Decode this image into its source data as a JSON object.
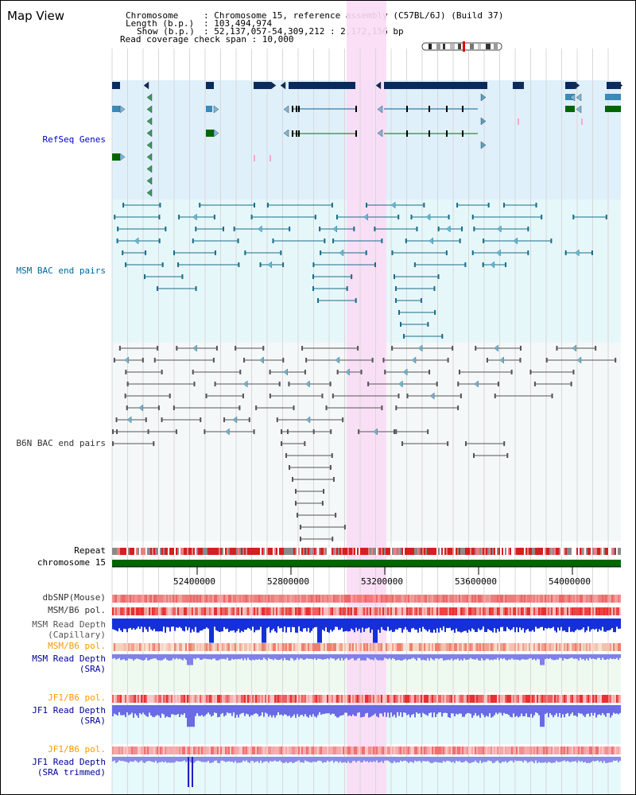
{
  "header": {
    "title": "Map View",
    "chromosome_key": "Chromosome",
    "chromosome_val": ": Chromosome 15, reference assembly (C57BL/6J) (Build 37)",
    "length_key": "Length (b.p.)",
    "length_val": ": 103,494,974",
    "show_key": "Show (b.p.)",
    "show_val": ": 52,137,057-54,309,212 : 2,172,156 bp",
    "coverage_line": "Read coverage check span : 10,000"
  },
  "tracks": {
    "refseq": "RefSeq Genes",
    "msm_bac": "MSM BAC end pairs",
    "b6n_bac": "B6N BAC end pairs",
    "repeat": "Repeat",
    "chromosome": "chromosome 15",
    "dbsnp": "dbSNP(Mouse)",
    "msm_b6_pol_1": "MSM/B6 pol.",
    "msm_depth_cap_1": "MSM Read Depth",
    "msm_depth_cap_2": "(Capillary)",
    "msm_b6_pol_2": "MSM/B6 pol.",
    "msm_depth_sra_1": "MSM Read Depth",
    "msm_depth_sra_2": "(SRA)",
    "jf1_b6_pol_1": "JF1/B6 pol.",
    "jf1_depth_sra_1": "JF1 Read Depth",
    "jf1_depth_sra_2": "(SRA)",
    "jf1_b6_pol_2": "JF1/B6 pol.",
    "jf1_depth_trim_1": "JF1 Read Depth",
    "jf1_depth_trim_2": "(SRA trimmed)"
  },
  "axis": {
    "ticks": [
      "52400000",
      "52800000",
      "53200000",
      "53600000",
      "54000000"
    ]
  },
  "colors": {
    "refseq_label": "#0000cc",
    "msm_label": "#006699",
    "orange_label": "#ff9900",
    "blue_label": "#000099",
    "highlight": "#fadcf5",
    "refseq_bg": "#dff0fb",
    "msm_bg": "#e6f7fa",
    "chromosome_bar": "#006600"
  }
}
